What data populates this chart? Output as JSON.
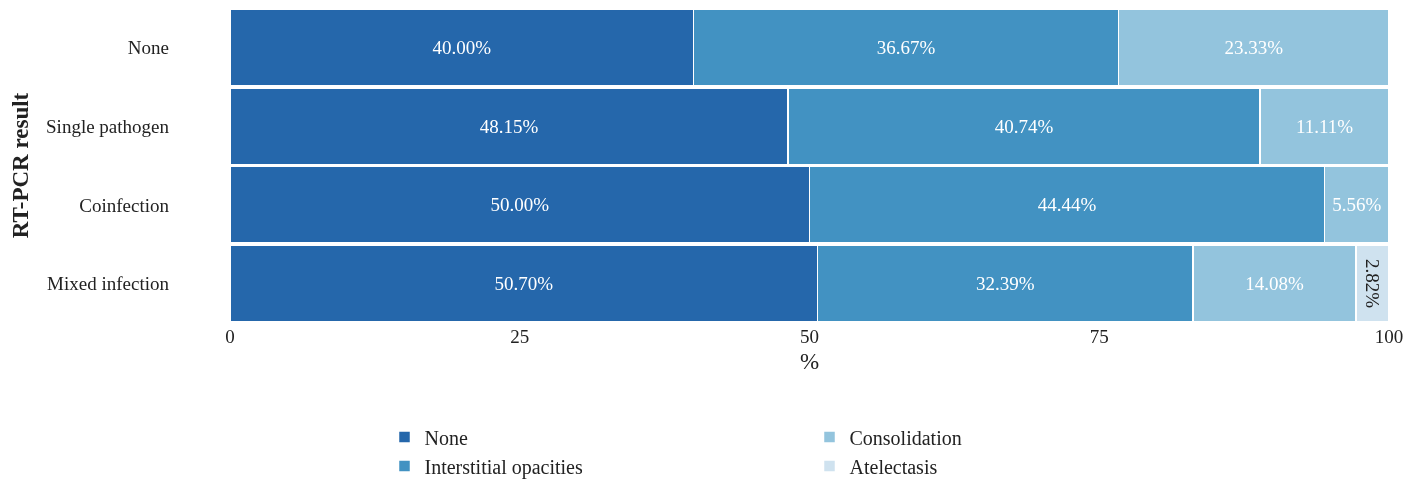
{
  "chart_data": {
    "type": "bar",
    "orientation": "horizontal",
    "stacked": true,
    "xlabel": "%",
    "ylabel": "RT-PCR result",
    "categories": [
      "None",
      "Single pathogen",
      "Coinfection",
      "Mixed infection"
    ],
    "series": [
      {
        "name": "None",
        "color": "#2567ab",
        "values": [
          40.0,
          48.15,
          50.0,
          50.7
        ],
        "value_labels": [
          "40.00%",
          "48.15%",
          "50.00%",
          "50.70%"
        ]
      },
      {
        "name": "Interstitial opacities",
        "color": "#4292c2",
        "values": [
          36.67,
          40.74,
          44.44,
          32.39
        ],
        "value_labels": [
          "36.67%",
          "40.74%",
          "44.44%",
          "32.39%"
        ]
      },
      {
        "name": "Consolidation",
        "color": "#93c4dd",
        "values": [
          23.33,
          11.11,
          5.56,
          14.08
        ],
        "value_labels": [
          "23.33%",
          "11.11%",
          "5.56%",
          "14.08%"
        ]
      },
      {
        "name": "Atelectasis",
        "color": "#cfe2ef",
        "values": [
          null,
          null,
          null,
          2.82
        ],
        "value_labels": [
          null,
          null,
          null,
          "2.82%"
        ]
      }
    ],
    "xlim": [
      0,
      100
    ],
    "xticks": [
      0,
      25,
      50,
      75,
      100
    ],
    "grid": false,
    "legend": "bottom"
  }
}
